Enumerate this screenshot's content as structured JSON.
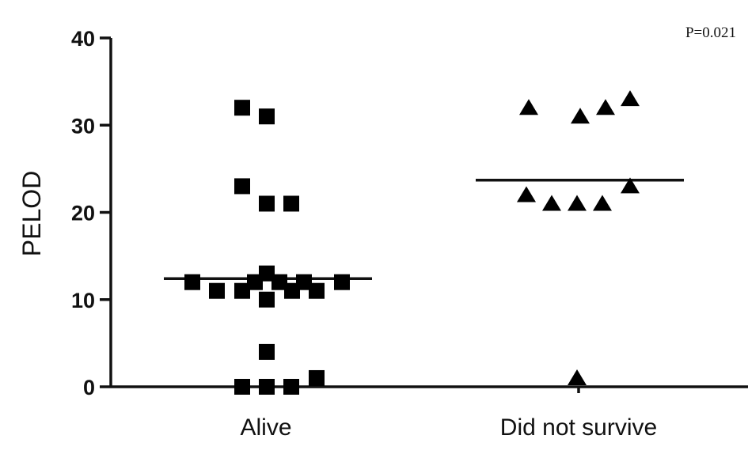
{
  "chart_data": {
    "type": "scatter",
    "title": "",
    "xlabel": "",
    "ylabel": "PELOD",
    "ylim": [
      0,
      40
    ],
    "yticks": [
      0,
      10,
      20,
      30,
      40
    ],
    "grid": false,
    "annotation": "P=0.021",
    "categories": [
      "Alive",
      "Did not survive"
    ],
    "series": [
      {
        "category": "Alive",
        "marker": "square",
        "values": [
          32,
          31,
          23,
          21,
          21,
          13,
          12,
          12,
          12,
          12,
          12,
          11,
          11,
          11,
          11,
          10,
          4,
          1,
          0,
          0,
          0
        ],
        "mean": 12.4
      },
      {
        "category": "Did not survive",
        "marker": "triangle",
        "values": [
          33,
          32,
          32,
          31,
          23,
          22,
          21,
          21,
          21,
          1
        ],
        "mean": 23.7
      }
    ]
  }
}
